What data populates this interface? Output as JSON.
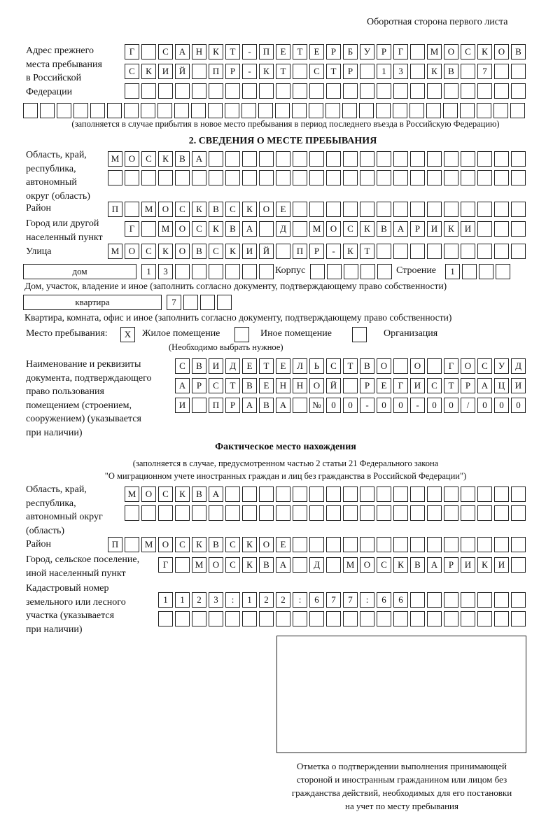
{
  "page_header": "Оборотная сторона первого листа",
  "previous_address": {
    "label": "Адрес прежнего места пребывания в Российской Федерации",
    "label_lines": [
      "Адрес прежнего",
      "места пребывания",
      "в Российской",
      "Федерации"
    ],
    "rows": [
      [
        "Г",
        "",
        "С",
        "А",
        "Н",
        "К",
        "Т",
        "-",
        "П",
        "Е",
        "Т",
        "Е",
        "Р",
        "Б",
        "У",
        "Р",
        "Г",
        "",
        "М",
        "О",
        "С",
        "К",
        "О",
        "В"
      ],
      [
        "С",
        "К",
        "И",
        "Й",
        "",
        "П",
        "Р",
        "-",
        "К",
        "Т",
        "",
        "С",
        "Т",
        "Р",
        "",
        "1",
        "3",
        "",
        "К",
        "В",
        "",
        "7",
        "",
        ""
      ],
      [
        "",
        "",
        "",
        "",
        "",
        "",
        "",
        "",
        "",
        "",
        "",
        "",
        "",
        "",
        "",
        "",
        "",
        "",
        "",
        "",
        "",
        "",
        "",
        ""
      ],
      [
        "",
        "",
        "",
        "",
        "",
        "",
        "",
        "",
        "",
        "",
        "",
        "",
        "",
        "",
        "",
        "",
        "",
        "",
        "",
        "",
        "",
        "",
        "",
        "",
        "",
        "",
        "",
        "",
        "",
        ""
      ]
    ],
    "note": "(заполняется в случае прибытия в новое место пребывания в период последнего въезда в Российскую Федерацию)"
  },
  "section2": {
    "title": "2. СВЕДЕНИЯ О МЕСТЕ ПРЕБЫВАНИЯ",
    "region_label_lines": [
      "Область, край,",
      "республика,",
      "автономный",
      "округ (область)"
    ],
    "region_rows": [
      [
        "М",
        "О",
        "С",
        "К",
        "В",
        "А",
        "",
        "",
        "",
        "",
        "",
        "",
        "",
        "",
        "",
        "",
        "",
        "",
        "",
        "",
        "",
        "",
        "",
        "",
        ""
      ],
      [
        "",
        "",
        "",
        "",
        "",
        "",
        "",
        "",
        "",
        "",
        "",
        "",
        "",
        "",
        "",
        "",
        "",
        "",
        "",
        "",
        "",
        "",
        "",
        "",
        ""
      ]
    ],
    "district_label": "Район",
    "district_row": [
      "П",
      "",
      "М",
      "О",
      "С",
      "К",
      "В",
      "С",
      "К",
      "О",
      "Е",
      "",
      "",
      "",
      "",
      "",
      "",
      "",
      "",
      "",
      "",
      "",
      "",
      "",
      ""
    ],
    "city_label_lines": [
      "Город или другой",
      "населенный пункт"
    ],
    "city_row": [
      "Г",
      "",
      "М",
      "О",
      "С",
      "К",
      "В",
      "А",
      "",
      "Д",
      "",
      "М",
      "О",
      "С",
      "К",
      "В",
      "А",
      "Р",
      "И",
      "К",
      "И",
      "",
      "",
      ""
    ],
    "street_label": "Улица",
    "street_row": [
      "М",
      "О",
      "С",
      "К",
      "О",
      "В",
      "С",
      "К",
      "И",
      "Й",
      "",
      "П",
      "Р",
      "-",
      "К",
      "Т",
      "",
      "",
      "",
      "",
      "",
      "",
      "",
      "",
      ""
    ],
    "house": {
      "type_value": "дом",
      "number": [
        "1",
        "3",
        "",
        "",
        "",
        "",
        "",
        ""
      ],
      "korpus_label": "Корпус",
      "korpus": [
        "",
        "",
        "",
        "",
        ""
      ],
      "building_label": "Строение",
      "building": [
        "1",
        "",
        "",
        ""
      ],
      "note": "Дом, участок, владение и иное (заполнить согласно документу, подтверждающему право собственности)"
    },
    "apartment": {
      "type_value": "квартира",
      "number": [
        "7",
        "",
        "",
        ""
      ],
      "note": "Квартира, комната, офис и иное (заполнить согласно документу, подтверждающему право собственности)"
    },
    "stay_place": {
      "label": "Место пребывания:",
      "options": [
        {
          "label": "Жилое помещение",
          "mark": "X"
        },
        {
          "label": "Иное помещение",
          "mark": ""
        },
        {
          "label": "Организация",
          "mark": ""
        }
      ],
      "note": "(Необходимо выбрать нужное)"
    },
    "document_label_lines": [
      "Наименование и реквизиты",
      "документа, подтверждающего",
      "право пользования",
      "помещением (строением,",
      "сооружением) (указывается",
      "при наличии)"
    ],
    "document_rows": [
      [
        "С",
        "В",
        "И",
        "Д",
        "Е",
        "Т",
        "Е",
        "Л",
        "Ь",
        "С",
        "Т",
        "В",
        "О",
        "",
        "О",
        "",
        "Г",
        "О",
        "С",
        "У",
        "Д"
      ],
      [
        "А",
        "Р",
        "С",
        "Т",
        "В",
        "Е",
        "Н",
        "Н",
        "О",
        "Й",
        "",
        "Р",
        "Е",
        "Г",
        "И",
        "С",
        "Т",
        "Р",
        "А",
        "Ц",
        "И"
      ],
      [
        "И",
        "",
        "П",
        "Р",
        "А",
        "В",
        "А",
        "",
        "№",
        "0",
        "0",
        "-",
        "0",
        "0",
        "-",
        "0",
        "0",
        "/",
        "0",
        "0",
        "0"
      ]
    ]
  },
  "actual_location": {
    "title": "Фактическое место нахождения",
    "subtitle_lines": [
      "(заполняется в случае, предусмотренном частью 2 статьи 21 Федерального закона",
      "\"О миграционном учете иностранных граждан и лиц без гражданства в Российской Федерации\")"
    ],
    "region_label_lines": [
      "Область, край,",
      "республика,",
      "автономный округ",
      "(область)"
    ],
    "region_rows": [
      [
        "М",
        "О",
        "С",
        "К",
        "В",
        "А",
        "",
        "",
        "",
        "",
        "",
        "",
        "",
        "",
        "",
        "",
        "",
        "",
        "",
        "",
        "",
        "",
        "",
        ""
      ],
      [
        "",
        "",
        "",
        "",
        "",
        "",
        "",
        "",
        "",
        "",
        "",
        "",
        "",
        "",
        "",
        "",
        "",
        "",
        "",
        "",
        "",
        "",
        "",
        ""
      ]
    ],
    "district_label": "Район",
    "district_row": [
      "П",
      "",
      "М",
      "О",
      "С",
      "К",
      "В",
      "С",
      "К",
      "О",
      "Е",
      "",
      "",
      "",
      "",
      "",
      "",
      "",
      "",
      "",
      "",
      "",
      "",
      "",
      ""
    ],
    "city_label_lines": [
      "Город, сельское поселение,",
      "иной населенный пункт"
    ],
    "city_row": [
      "Г",
      "",
      "М",
      "О",
      "С",
      "К",
      "В",
      "А",
      "",
      "Д",
      "",
      "М",
      "О",
      "С",
      "К",
      "В",
      "А",
      "Р",
      "И",
      "К",
      "И",
      ""
    ],
    "cadastral_label_lines": [
      "Кадастровый номер",
      "земельного или лесного",
      "участка (указывается",
      "при наличии)"
    ],
    "cadastral_rows": [
      [
        "1",
        "1",
        "2",
        "3",
        ":",
        "1",
        "2",
        "2",
        ":",
        "6",
        "7",
        "7",
        ":",
        "6",
        "6",
        "",
        "",
        "",
        "",
        "",
        "",
        ""
      ],
      [
        "",
        "",
        "",
        "",
        "",
        "",
        "",
        "",
        "",
        "",
        "",
        "",
        "",
        "",
        "",
        "",
        "",
        "",
        "",
        "",
        "",
        ""
      ]
    ]
  },
  "confirmation": {
    "caption_lines": [
      "Отметка о подтверждении выполнения принимающей",
      "стороной и иностранным гражданином или лицом без",
      "гражданства действий, необходимых для его постановки",
      "на учет по месту пребывания"
    ]
  }
}
